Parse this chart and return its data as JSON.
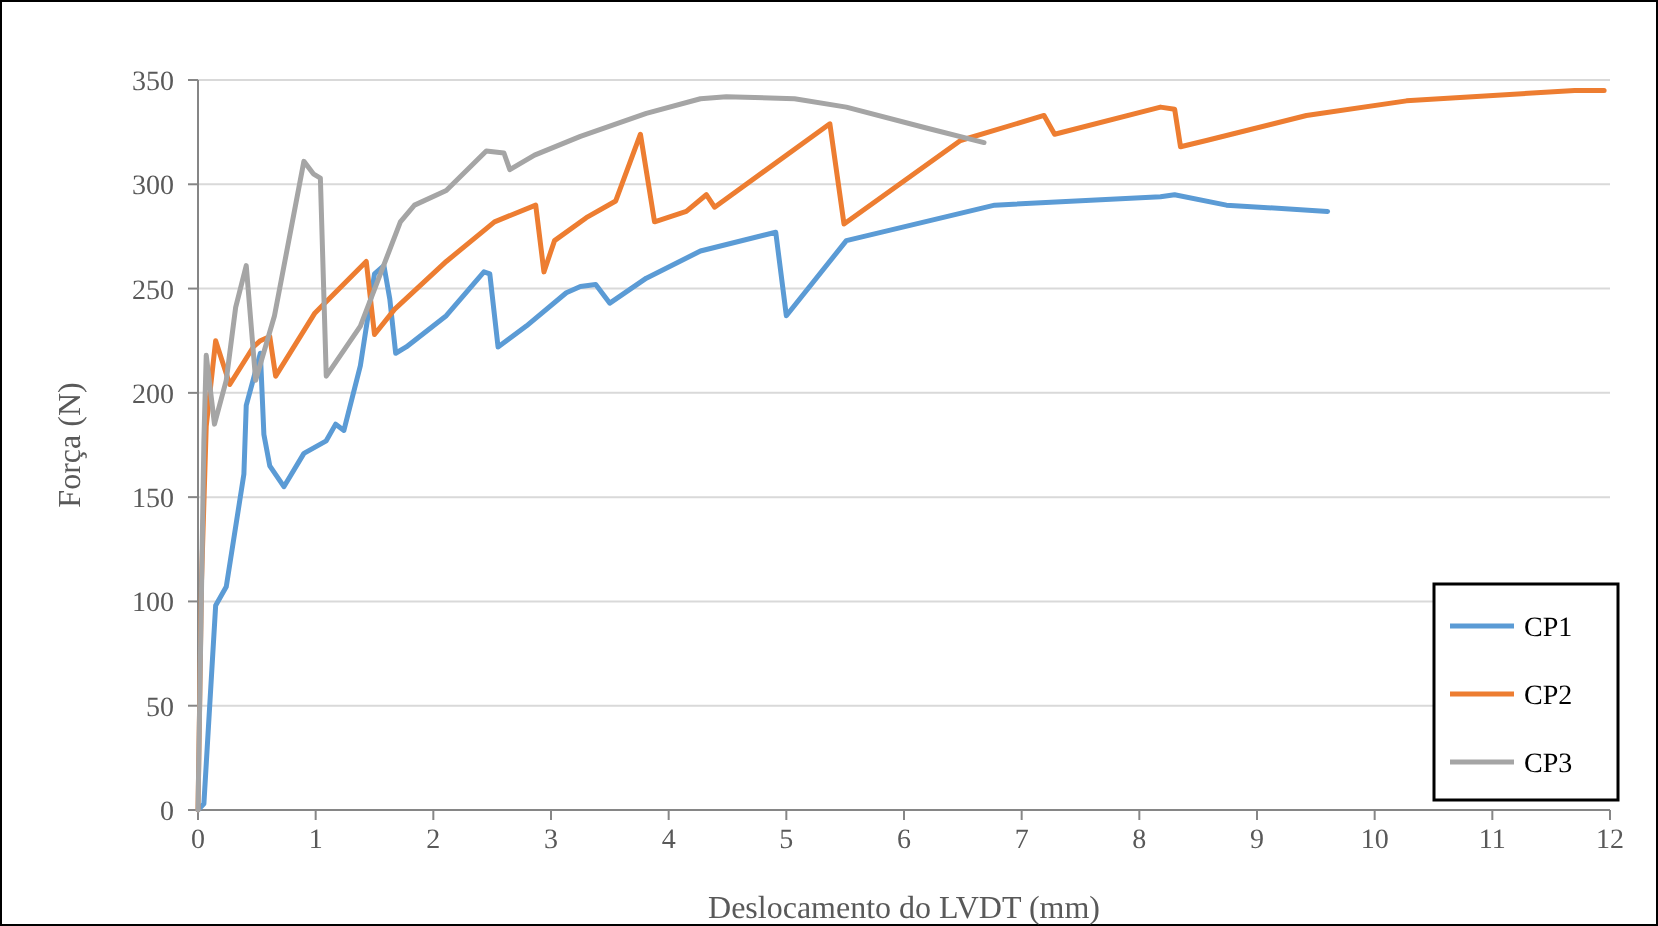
{
  "chart_data": {
    "type": "line",
    "xlabel": "Deslocamento do LVDT (mm)",
    "ylabel": "Força (N)",
    "xlim": [
      0,
      12
    ],
    "ylim": [
      0,
      350
    ],
    "xticks": [
      0,
      1,
      2,
      3,
      4,
      5,
      6,
      7,
      8,
      9,
      10,
      11,
      12
    ],
    "yticks": [
      0,
      50,
      100,
      150,
      200,
      250,
      300,
      350
    ],
    "grid": "y",
    "legend": "bottom right",
    "marker": "none",
    "line_style": "solid",
    "series": [
      {
        "name": "CP1",
        "color": "#5b9bd5",
        "x": [
          0,
          0.05,
          0.15,
          0.24,
          0.39,
          0.41,
          0.53,
          0.56,
          0.61,
          0.73,
          0.9,
          1.09,
          1.17,
          1.24,
          1.38,
          1.5,
          1.58,
          1.63,
          1.68,
          1.77,
          2.11,
          2.43,
          2.48,
          2.55,
          2.79,
          3.13,
          3.25,
          3.38,
          3.5,
          3.81,
          4.27,
          4.91,
          5.0,
          5.51,
          6.77,
          8.18,
          8.3,
          8.74,
          9.6
        ],
        "values": [
          0,
          3,
          98,
          107,
          161,
          194,
          219,
          180,
          165,
          155,
          171,
          177,
          185,
          182,
          213,
          257,
          261,
          245,
          219,
          222,
          237,
          258,
          257,
          222,
          232,
          248,
          251,
          252,
          243,
          255,
          268,
          277,
          237,
          273,
          290,
          294,
          295,
          290,
          287
        ]
      },
      {
        "name": "CP2",
        "color": "#ed7d31",
        "x": [
          0,
          0.03,
          0.07,
          0.15,
          0.27,
          0.47,
          0.53,
          0.61,
          0.66,
          0.99,
          1.43,
          1.5,
          1.67,
          2.11,
          2.52,
          2.87,
          2.94,
          3.03,
          3.3,
          3.55,
          3.76,
          3.88,
          4.15,
          4.32,
          4.39,
          5.37,
          5.49,
          6.48,
          7.19,
          7.28,
          8.18,
          8.3,
          8.35,
          8.57,
          9.42,
          10.27,
          11.7,
          11.95
        ],
        "values": [
          0,
          110,
          184,
          225,
          204,
          222,
          225,
          227,
          208,
          238,
          263,
          228,
          240,
          263,
          282,
          290,
          258,
          273,
          284,
          292,
          324,
          282,
          287,
          295,
          289,
          329,
          281,
          321,
          333,
          324,
          337,
          336,
          318,
          321,
          333,
          340,
          345,
          345
        ]
      },
      {
        "name": "CP3",
        "color": "#a5a5a5",
        "x": [
          0,
          0.05,
          0.07,
          0.14,
          0.24,
          0.32,
          0.41,
          0.49,
          0.65,
          0.9,
          0.98,
          1.04,
          1.09,
          1.38,
          1.72,
          1.84,
          2.11,
          2.45,
          2.6,
          2.65,
          2.86,
          3.25,
          3.81,
          4.27,
          4.49,
          5.07,
          5.51,
          6.19,
          6.68
        ],
        "values": [
          0,
          177,
          218,
          185,
          206,
          241,
          261,
          206,
          237,
          311,
          305,
          303,
          208,
          232,
          282,
          290,
          297,
          316,
          315,
          307,
          314,
          323,
          334,
          341,
          342,
          341,
          337,
          327,
          320
        ]
      }
    ]
  }
}
